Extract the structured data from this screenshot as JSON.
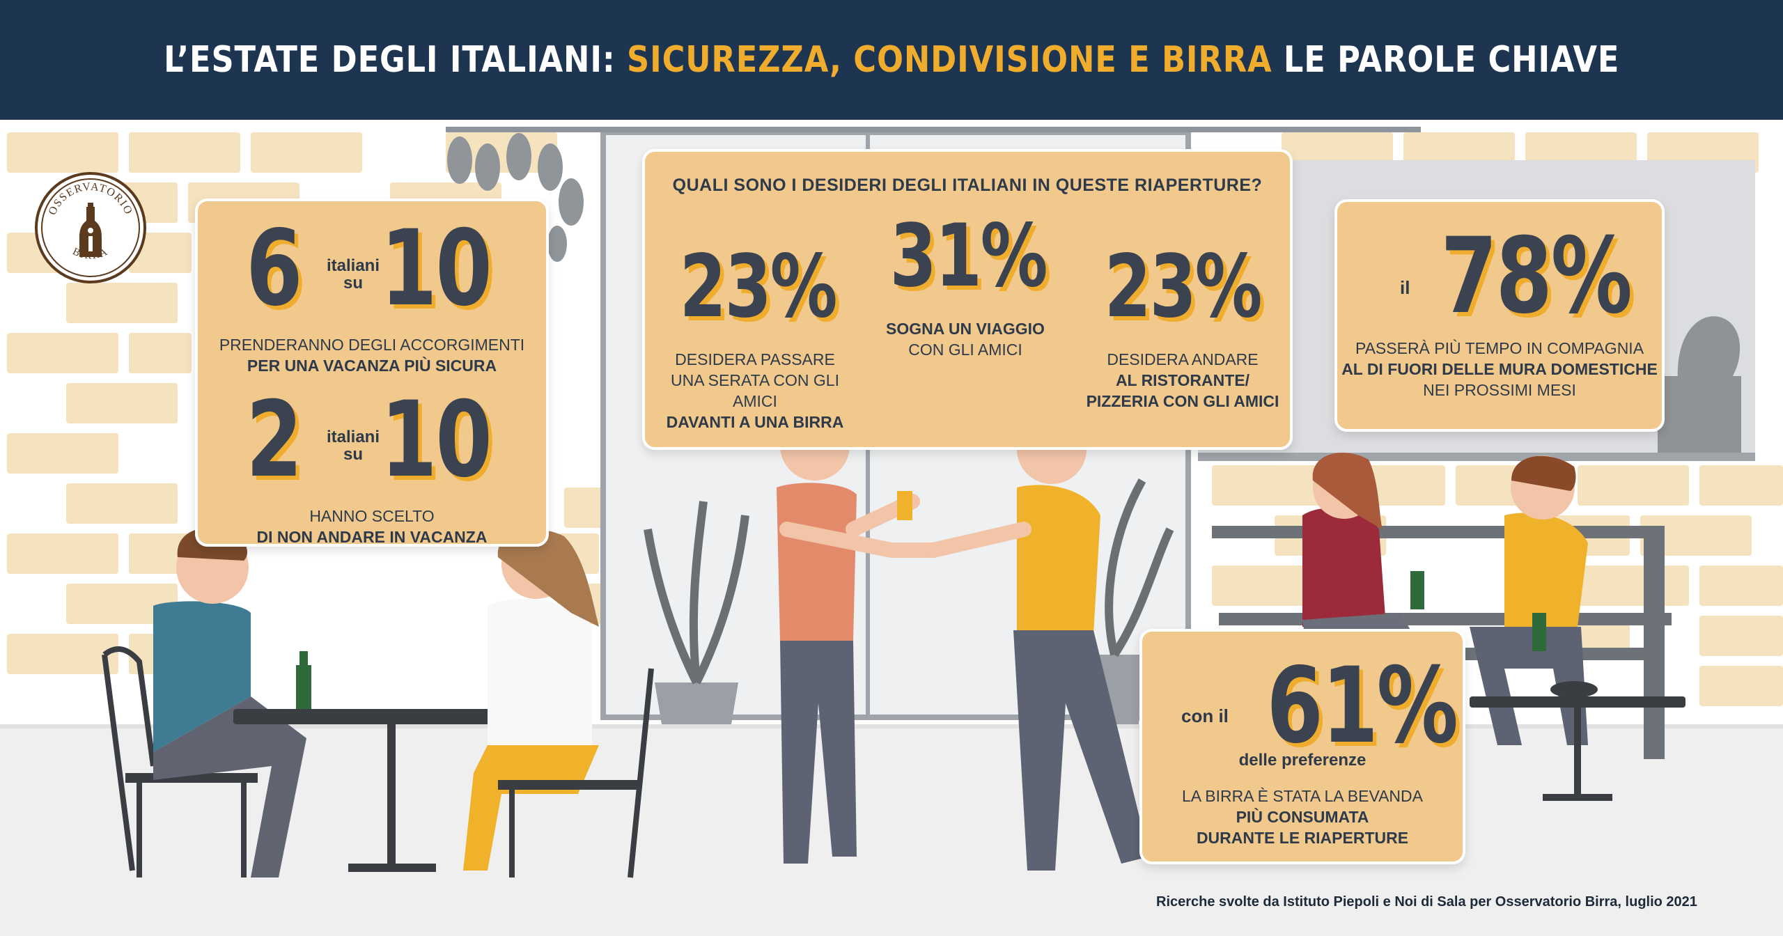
{
  "header": {
    "title_part1": "L’ESTATE DEGLI ITALIANI:",
    "title_highlight": "SICUREZZA, CONDIVISIONE E BIRRA",
    "title_part2": "LE PAROLE CHIAVE"
  },
  "logo": {
    "text_top": "OSSERVATORIO",
    "text_bottom": "BIRRA",
    "icon": "beer-bottle-icon",
    "color": "#5c3a1e"
  },
  "left_box": {
    "stat1": {
      "num1": "6",
      "mid_top": "italiani",
      "mid_bottom": "su",
      "num2": "10",
      "line1": "PRENDERANNO DEGLI ACCORGIMENTI",
      "line2_bold": "PER UNA VACANZA PIÙ SICURA"
    },
    "stat2": {
      "num1": "2",
      "mid_top": "italiani",
      "mid_bottom": "su",
      "num2": "10",
      "line1": "HANNO SCELTO",
      "line2_bold": "DI NON ANDARE IN VACANZA"
    }
  },
  "center_box": {
    "title": "QUALI SONO I DESIDERI DEGLI ITALIANI IN QUESTE RIAPERTURE?",
    "items": [
      {
        "value": "23%",
        "line1": "DESIDERA PASSARE",
        "line2": "UNA SERATA CON GLI AMICI",
        "line3_bold": "DAVANTI A UNA BIRRA"
      },
      {
        "value": "31%",
        "line1_bold": "SOGNA UN VIAGGIO",
        "line2": "CON GLI AMICI"
      },
      {
        "value": "23%",
        "line1": "DESIDERA ANDARE",
        "line2_bold": "AL RISTORANTE/",
        "line3_bold": "PIZZERIA CON GLI AMICI"
      }
    ]
  },
  "right_box": {
    "prefix": "il",
    "value": "78%",
    "line1": "PASSERÀ PIÙ TEMPO IN COMPAGNIA",
    "line2_bold": "AL DI FUORI DELLE MURA DOMESTICHE",
    "line3": "NEI PROSSIMI MESI"
  },
  "bottom_box": {
    "prefix": "con il",
    "value": "61%",
    "suffix": "delle preferenze",
    "line1": "LA BIRRA È STATA LA BEVANDA",
    "line2_bold": "PIÙ CONSUMATA",
    "line3_bold": "DURANTE LE RIAPERTURE"
  },
  "footnote": "Ricerche svolte da Istituto Piepoli e Noi di Sala per Osservatorio Birra, luglio 2021",
  "colors": {
    "header_bg": "#1d3550",
    "accent": "#f0ac2c",
    "box_bg": "#f1c98c",
    "number": "#3b4250"
  }
}
